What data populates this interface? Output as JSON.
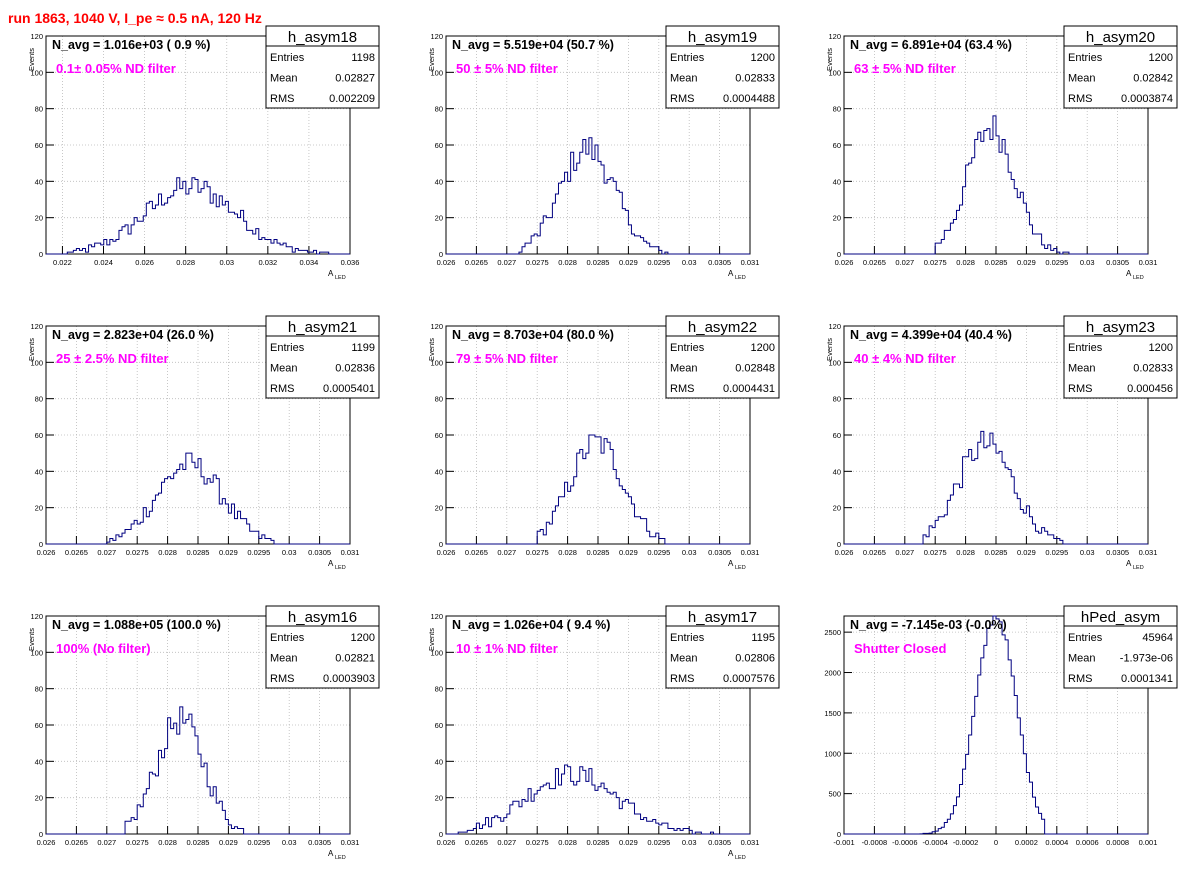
{
  "title": "run 1863,  1040 V, I_pe ≈ 0.5 nA, 120 Hz",
  "colors": {
    "title": "#ff0000",
    "annotation": "#ff00ff",
    "histogram": "#000080",
    "grid": "#bbbbbb"
  },
  "chart_data": [
    {
      "type": "bar",
      "name": "h_asym18",
      "stats": {
        "entries": "1198",
        "mean": "0.02827",
        "rms": "0.002209"
      },
      "navg": "N_avg = 1.016e+03 ( 0.9 %)",
      "filter": "0.1± 0.05% ND filter",
      "ylabel": "Events",
      "xlabel": "A",
      "xlabel_sub": "LED",
      "xlim": [
        0.0212,
        0.036
      ],
      "ylim": [
        0,
        120
      ],
      "xticks": [
        "0.022",
        "0.024",
        "0.026",
        "0.028",
        "0.03",
        "0.032",
        "0.034",
        "0.036"
      ],
      "xtick_values": [
        0.022,
        0.024,
        0.026,
        0.028,
        0.03,
        0.032,
        0.034,
        0.036
      ],
      "yticks": [
        "0",
        "20",
        "40",
        "60",
        "80",
        "100",
        "120"
      ],
      "hist": {
        "mean": 0.02827,
        "sigma": 0.00221,
        "peak": 37,
        "min": 0.0222,
        "max": 0.035,
        "bins": 100
      }
    },
    {
      "type": "bar",
      "name": "h_asym19",
      "stats": {
        "entries": "1200",
        "mean": "0.02833",
        "rms": "0.0004488"
      },
      "navg": "N_avg = 5.519e+04 (50.7 %)",
      "filter": "50 ± 5% ND filter",
      "ylabel": "Events",
      "xlabel": "A",
      "xlabel_sub": "LED",
      "xlim": [
        0.026,
        0.031
      ],
      "ylim": [
        0,
        120
      ],
      "xticks": [
        "0.026",
        "0.0265",
        "0.027",
        "0.0275",
        "0.028",
        "0.0285",
        "0.029",
        "0.0295",
        "0.03",
        "0.0305",
        "0.031"
      ],
      "xtick_values": [
        0.026,
        0.0265,
        0.027,
        0.0275,
        0.028,
        0.0285,
        0.029,
        0.0295,
        0.03,
        0.0305,
        0.031
      ],
      "yticks": [
        "0",
        "20",
        "40",
        "60",
        "80",
        "100",
        "120"
      ],
      "hist": {
        "mean": 0.02833,
        "sigma": 0.00045,
        "peak": 58,
        "min": 0.0272,
        "max": 0.0297,
        "bins": 100
      }
    },
    {
      "type": "bar",
      "name": "h_asym20",
      "stats": {
        "entries": "1200",
        "mean": "0.02842",
        "rms": "0.0003874"
      },
      "navg": "N_avg = 6.891e+04 (63.4 %)",
      "filter": "63 ± 5% ND filter",
      "ylabel": "Events",
      "xlabel": "A",
      "xlabel_sub": "LED",
      "xlim": [
        0.026,
        0.031
      ],
      "ylim": [
        0,
        120
      ],
      "xticks": [
        "0.026",
        "0.0265",
        "0.027",
        "0.0275",
        "0.028",
        "0.0285",
        "0.029",
        "0.0295",
        "0.03",
        "0.0305",
        "0.031"
      ],
      "xtick_values": [
        0.026,
        0.0265,
        0.027,
        0.0275,
        0.028,
        0.0285,
        0.029,
        0.0295,
        0.03,
        0.0305,
        0.031
      ],
      "yticks": [
        "0",
        "20",
        "40",
        "60",
        "80",
        "100",
        "120"
      ],
      "hist": {
        "mean": 0.02842,
        "sigma": 0.00039,
        "peak": 70,
        "min": 0.0275,
        "max": 0.0297,
        "bins": 100
      }
    },
    {
      "type": "bar",
      "name": "h_asym21",
      "stats": {
        "entries": "1199",
        "mean": "0.02836",
        "rms": "0.0005401"
      },
      "navg": "N_avg = 2.823e+04 (26.0 %)",
      "filter": "25 ± 2.5% ND filter",
      "ylabel": "Events",
      "xlabel": "A",
      "xlabel_sub": "LED",
      "xlim": [
        0.026,
        0.031
      ],
      "ylim": [
        0,
        120
      ],
      "xticks": [
        "0.026",
        "0.0265",
        "0.027",
        "0.0275",
        "0.028",
        "0.0285",
        "0.029",
        "0.0295",
        "0.03",
        "0.0305",
        "0.031"
      ],
      "xtick_values": [
        0.026,
        0.0265,
        0.027,
        0.0275,
        0.028,
        0.0285,
        0.029,
        0.0295,
        0.03,
        0.0305,
        0.031
      ],
      "yticks": [
        "0",
        "20",
        "40",
        "60",
        "80",
        "100",
        "120"
      ],
      "hist": {
        "mean": 0.02836,
        "sigma": 0.00054,
        "peak": 44,
        "min": 0.027,
        "max": 0.0298,
        "bins": 100
      }
    },
    {
      "type": "bar",
      "name": "h_asym22",
      "stats": {
        "entries": "1200",
        "mean": "0.02848",
        "rms": "0.0004431"
      },
      "navg": "N_avg = 8.703e+04 (80.0 %)",
      "filter": "79 ± 5% ND filter",
      "ylabel": "Events",
      "xlabel": "A",
      "xlabel_sub": "LED",
      "xlim": [
        0.026,
        0.031
      ],
      "ylim": [
        0,
        120
      ],
      "xticks": [
        "0.026",
        "0.0265",
        "0.027",
        "0.0275",
        "0.028",
        "0.0285",
        "0.029",
        "0.0295",
        "0.03",
        "0.0305",
        "0.031"
      ],
      "xtick_values": [
        0.026,
        0.0265,
        0.027,
        0.0275,
        0.028,
        0.0285,
        0.029,
        0.0295,
        0.03,
        0.0305,
        0.031
      ],
      "yticks": [
        "0",
        "20",
        "40",
        "60",
        "80",
        "100",
        "120"
      ],
      "hist": {
        "mean": 0.02848,
        "sigma": 0.00044,
        "peak": 56,
        "min": 0.0275,
        "max": 0.0296,
        "bins": 100
      }
    },
    {
      "type": "bar",
      "name": "h_asym23",
      "stats": {
        "entries": "1200",
        "mean": "0.02833",
        "rms": "0.000456"
      },
      "navg": "N_avg = 4.399e+04 (40.4 %)",
      "filter": "40 ± 4% ND filter",
      "ylabel": "Events",
      "xlabel": "A",
      "xlabel_sub": "LED",
      "xlim": [
        0.026,
        0.031
      ],
      "ylim": [
        0,
        120
      ],
      "xticks": [
        "0.026",
        "0.0265",
        "0.027",
        "0.0275",
        "0.028",
        "0.0285",
        "0.029",
        "0.0295",
        "0.03",
        "0.0305",
        "0.031"
      ],
      "xtick_values": [
        0.026,
        0.0265,
        0.027,
        0.0275,
        0.028,
        0.0285,
        0.029,
        0.0295,
        0.03,
        0.0305,
        0.031
      ],
      "yticks": [
        "0",
        "20",
        "40",
        "60",
        "80",
        "100",
        "120"
      ],
      "hist": {
        "mean": 0.02833,
        "sigma": 0.00046,
        "peak": 55,
        "min": 0.0273,
        "max": 0.0296,
        "bins": 100
      }
    },
    {
      "type": "bar",
      "name": "h_asym16",
      "stats": {
        "entries": "1200",
        "mean": "0.02821",
        "rms": "0.0003903"
      },
      "navg": "N_avg = 1.088e+05 (100.0 %)",
      "filter": "100% (No filter)",
      "ylabel": "Events",
      "xlabel": "A",
      "xlabel_sub": "LED",
      "xlim": [
        0.026,
        0.031
      ],
      "ylim": [
        0,
        120
      ],
      "xticks": [
        "0.026",
        "0.0265",
        "0.027",
        "0.0275",
        "0.028",
        "0.0285",
        "0.029",
        "0.0295",
        "0.03",
        "0.0305",
        "0.031"
      ],
      "xtick_values": [
        0.026,
        0.0265,
        0.027,
        0.0275,
        0.028,
        0.0285,
        0.029,
        0.0295,
        0.03,
        0.0305,
        0.031
      ],
      "yticks": [
        "0",
        "20",
        "40",
        "60",
        "80",
        "100",
        "120"
      ],
      "hist": {
        "mean": 0.02821,
        "sigma": 0.00039,
        "peak": 63,
        "min": 0.0273,
        "max": 0.0293,
        "bins": 100
      }
    },
    {
      "type": "bar",
      "name": "h_asym17",
      "stats": {
        "entries": "1195",
        "mean": "0.02806",
        "rms": "0.0007576"
      },
      "navg": "N_avg = 1.026e+04 ( 9.4 %)",
      "filter": "10 ± 1% ND filter",
      "ylabel": "Events",
      "xlabel": "A",
      "xlabel_sub": "LED",
      "xlim": [
        0.026,
        0.031
      ],
      "ylim": [
        0,
        120
      ],
      "xticks": [
        "0.026",
        "0.0265",
        "0.027",
        "0.0275",
        "0.028",
        "0.0285",
        "0.029",
        "0.0295",
        "0.03",
        "0.0305",
        "0.031"
      ],
      "xtick_values": [
        0.026,
        0.0265,
        0.027,
        0.0275,
        0.028,
        0.0285,
        0.029,
        0.0295,
        0.03,
        0.0305,
        0.031
      ],
      "yticks": [
        "0",
        "20",
        "40",
        "60",
        "80",
        "100",
        "120"
      ],
      "hist": {
        "mean": 0.02806,
        "sigma": 0.00076,
        "peak": 33,
        "min": 0.0262,
        "max": 0.0305,
        "bins": 100
      }
    },
    {
      "type": "bar",
      "name": "hPed_asym",
      "stats": {
        "entries": "45964",
        "mean": "-1.973e-06",
        "rms": "0.0001341"
      },
      "navg": "N_avg = -7.145e-03 (-0.0%)",
      "filter": "Shutter Closed",
      "ylabel": "",
      "xlabel": "",
      "xlabel_sub": "",
      "xlim": [
        -0.001,
        0.001
      ],
      "ylim": [
        0,
        2700
      ],
      "xticks": [
        "-0.001",
        "-0.0008",
        "-0.0006",
        "-0.0004",
        "-0.0002",
        "0",
        "0.0002",
        "0.0004",
        "0.0006",
        "0.0008",
        "0.001"
      ],
      "xtick_values": [
        -0.001,
        -0.0008,
        -0.0006,
        -0.0004,
        -0.0002,
        0,
        0.0002,
        0.0004,
        0.0006,
        0.0008,
        0.001
      ],
      "yticks": [
        "0",
        "500",
        "1000",
        "1500",
        "2000",
        "2500"
      ],
      "ytick_values": [
        0,
        500,
        1000,
        1500,
        2000,
        2500
      ],
      "hist": {
        "mean": 0.0,
        "sigma": 0.000134,
        "peak": 2700,
        "min": -0.0005,
        "max": 0.00032,
        "bins": 100
      }
    }
  ],
  "stat_labels": {
    "entries": "Entries",
    "mean": "Mean",
    "rms": "RMS"
  }
}
